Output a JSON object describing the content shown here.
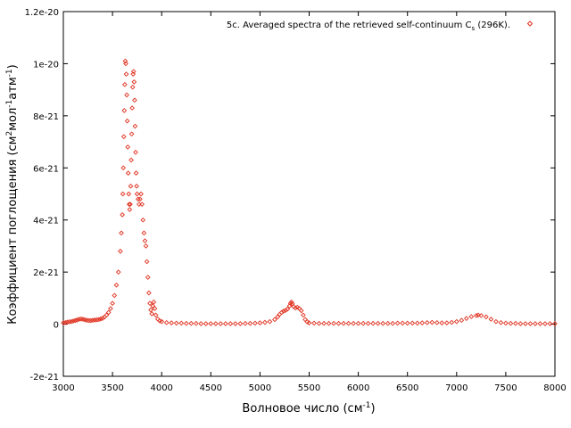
{
  "chart_data": {
    "type": "scatter",
    "title": "",
    "xlabel": "Волновое число (см",
    "xlabel_sup": "-1",
    "xlabel_tail": ")",
    "ylabel": "Коэффициент поглощения (см",
    "ylabel_sup1": "2",
    "ylabel_mid": "мол",
    "ylabel_sup2": "-1",
    "ylabel_mid2": "атм",
    "ylabel_sup3": "-1",
    "ylabel_tail": ")",
    "xlim": [
      3000,
      8000
    ],
    "ylim": [
      -2e-21,
      1.2e-20
    ],
    "x_ticks": [
      3000,
      3500,
      4000,
      4500,
      5000,
      5500,
      6000,
      6500,
      7000,
      7500,
      8000
    ],
    "x_tick_labels": [
      "3000",
      "3500",
      "4000",
      "4500",
      "5000",
      "5500",
      "6000",
      "6500",
      "7000",
      "7500",
      "8000"
    ],
    "y_ticks": [
      -2e-21,
      0,
      2e-21,
      4e-21,
      6e-21,
      8e-21,
      1e-20,
      1.2e-20
    ],
    "y_tick_labels": [
      "-2e-21",
      "0",
      "2e-21",
      "4e-21",
      "6e-21",
      "8e-21",
      "1e-20",
      "1.2e-20"
    ],
    "grid": false,
    "legend_position": "top-right",
    "series": [
      {
        "name": "5c. Averaged spectra of the retrieved self-continuum C",
        "name_sub": "s",
        "name_tail": " (296K).",
        "color": "#e0301e",
        "marker": "diamond",
        "points": [
          [
            3000,
            5e-23
          ],
          [
            3020,
            6e-23
          ],
          [
            3040,
            8e-23
          ],
          [
            3060,
            9e-23
          ],
          [
            3080,
            1e-22
          ],
          [
            3100,
            1.2e-22
          ],
          [
            3120,
            1.4e-22
          ],
          [
            3140,
            1.6e-22
          ],
          [
            3160,
            1.9e-22
          ],
          [
            3180,
            2e-22
          ],
          [
            3200,
            1.9e-22
          ],
          [
            3220,
            1.7e-22
          ],
          [
            3240,
            1.5e-22
          ],
          [
            3260,
            1.4e-22
          ],
          [
            3280,
            1.4e-22
          ],
          [
            3300,
            1.5e-22
          ],
          [
            3320,
            1.6e-22
          ],
          [
            3340,
            1.7e-22
          ],
          [
            3360,
            1.8e-22
          ],
          [
            3380,
            2e-22
          ],
          [
            3400,
            2.3e-22
          ],
          [
            3420,
            2.8e-22
          ],
          [
            3440,
            3.5e-22
          ],
          [
            3460,
            4.5e-22
          ],
          [
            3480,
            6e-22
          ],
          [
            3500,
            8e-22
          ],
          [
            3520,
            1.1e-21
          ],
          [
            3540,
            1.5e-21
          ],
          [
            3560,
            2e-21
          ],
          [
            3580,
            2.8e-21
          ],
          [
            3590,
            3.5e-21
          ],
          [
            3600,
            4.2e-21
          ],
          [
            3605,
            5e-21
          ],
          [
            3610,
            6e-21
          ],
          [
            3615,
            7.2e-21
          ],
          [
            3620,
            8.2e-21
          ],
          [
            3625,
            9.2e-21
          ],
          [
            3630,
            1.01e-20
          ],
          [
            3635,
            1e-20
          ],
          [
            3640,
            9.6e-21
          ],
          [
            3645,
            8.8e-21
          ],
          [
            3650,
            7.8e-21
          ],
          [
            3655,
            6.8e-21
          ],
          [
            3660,
            5.8e-21
          ],
          [
            3665,
            5e-21
          ],
          [
            3670,
            4.6e-21
          ],
          [
            3675,
            4.4e-21
          ],
          [
            3680,
            4.6e-21
          ],
          [
            3685,
            5.3e-21
          ],
          [
            3690,
            6.3e-21
          ],
          [
            3695,
            7.3e-21
          ],
          [
            3700,
            8.3e-21
          ],
          [
            3705,
            9.1e-21
          ],
          [
            3710,
            9.6e-21
          ],
          [
            3715,
            9.7e-21
          ],
          [
            3720,
            9.3e-21
          ],
          [
            3725,
            8.6e-21
          ],
          [
            3730,
            7.6e-21
          ],
          [
            3735,
            6.6e-21
          ],
          [
            3740,
            5.8e-21
          ],
          [
            3745,
            5.3e-21
          ],
          [
            3750,
            5e-21
          ],
          [
            3760,
            4.8e-21
          ],
          [
            3770,
            4.6e-21
          ],
          [
            3780,
            4.8e-21
          ],
          [
            3790,
            5e-21
          ],
          [
            3800,
            4.6e-21
          ],
          [
            3810,
            4e-21
          ],
          [
            3820,
            3.5e-21
          ],
          [
            3830,
            3.2e-21
          ],
          [
            3840,
            3e-21
          ],
          [
            3850,
            2.4e-21
          ],
          [
            3860,
            1.8e-21
          ],
          [
            3870,
            1.2e-21
          ],
          [
            3880,
            8e-22
          ],
          [
            3890,
            5.5e-22
          ],
          [
            3900,
            4e-22
          ],
          [
            3910,
            7e-22
          ],
          [
            3920,
            8.5e-22
          ],
          [
            3930,
            6e-22
          ],
          [
            3940,
            3.5e-22
          ],
          [
            3960,
            2e-22
          ],
          [
            3980,
            1.3e-22
          ],
          [
            4000,
            1e-22
          ],
          [
            4050,
            6e-23
          ],
          [
            4100,
            5e-23
          ],
          [
            4150,
            4e-23
          ],
          [
            4200,
            4e-23
          ],
          [
            4250,
            3e-23
          ],
          [
            4300,
            3e-23
          ],
          [
            4350,
            3e-23
          ],
          [
            4400,
            2e-23
          ],
          [
            4450,
            2e-23
          ],
          [
            4500,
            2e-23
          ],
          [
            4550,
            2e-23
          ],
          [
            4600,
            2e-23
          ],
          [
            4650,
            2e-23
          ],
          [
            4700,
            2e-23
          ],
          [
            4750,
            2e-23
          ],
          [
            4800,
            2e-23
          ],
          [
            4850,
            3e-23
          ],
          [
            4900,
            3e-23
          ],
          [
            4950,
            4e-23
          ],
          [
            5000,
            5e-23
          ],
          [
            5050,
            7e-23
          ],
          [
            5100,
            1e-22
          ],
          [
            5150,
            1.8e-22
          ],
          [
            5180,
            2.8e-22
          ],
          [
            5200,
            3.8e-22
          ],
          [
            5220,
            4.5e-22
          ],
          [
            5240,
            5e-22
          ],
          [
            5260,
            5.3e-22
          ],
          [
            5280,
            5.8e-22
          ],
          [
            5300,
            7e-22
          ],
          [
            5310,
            8e-22
          ],
          [
            5320,
            8.5e-22
          ],
          [
            5330,
            7.8e-22
          ],
          [
            5340,
            6.8e-22
          ],
          [
            5360,
            6.2e-22
          ],
          [
            5380,
            6.5e-22
          ],
          [
            5400,
            6e-22
          ],
          [
            5420,
            5.2e-22
          ],
          [
            5440,
            3.5e-22
          ],
          [
            5460,
            1.8e-22
          ],
          [
            5480,
            9e-23
          ],
          [
            5500,
            5e-23
          ],
          [
            5550,
            4e-23
          ],
          [
            5600,
            3e-23
          ],
          [
            5650,
            3e-23
          ],
          [
            5700,
            3e-23
          ],
          [
            5750,
            3e-23
          ],
          [
            5800,
            3e-23
          ],
          [
            5850,
            3e-23
          ],
          [
            5900,
            3e-23
          ],
          [
            5950,
            3e-23
          ],
          [
            6000,
            3e-23
          ],
          [
            6050,
            3e-23
          ],
          [
            6100,
            3e-23
          ],
          [
            6150,
            3e-23
          ],
          [
            6200,
            3e-23
          ],
          [
            6250,
            3e-23
          ],
          [
            6300,
            3e-23
          ],
          [
            6350,
            3e-23
          ],
          [
            6400,
            4e-23
          ],
          [
            6450,
            4e-23
          ],
          [
            6500,
            4e-23
          ],
          [
            6550,
            4e-23
          ],
          [
            6600,
            4e-23
          ],
          [
            6650,
            5e-23
          ],
          [
            6700,
            6e-23
          ],
          [
            6750,
            7e-23
          ],
          [
            6800,
            6e-23
          ],
          [
            6850,
            5e-23
          ],
          [
            6900,
            5e-23
          ],
          [
            6950,
            7e-23
          ],
          [
            7000,
            1e-22
          ],
          [
            7050,
            1.5e-22
          ],
          [
            7100,
            2.2e-22
          ],
          [
            7150,
            2.9e-22
          ],
          [
            7200,
            3.3e-22
          ],
          [
            7220,
            3.5e-22
          ],
          [
            7250,
            3.3e-22
          ],
          [
            7300,
            2.8e-22
          ],
          [
            7350,
            1.9e-22
          ],
          [
            7400,
            1e-22
          ],
          [
            7450,
            6e-23
          ],
          [
            7500,
            4e-23
          ],
          [
            7550,
            3e-23
          ],
          [
            7600,
            3e-23
          ],
          [
            7650,
            2e-23
          ],
          [
            7700,
            2e-23
          ],
          [
            7750,
            2e-23
          ],
          [
            7800,
            2e-23
          ],
          [
            7850,
            2e-23
          ],
          [
            7900,
            2e-23
          ],
          [
            7950,
            2e-23
          ],
          [
            8000,
            2e-23
          ]
        ]
      }
    ]
  }
}
